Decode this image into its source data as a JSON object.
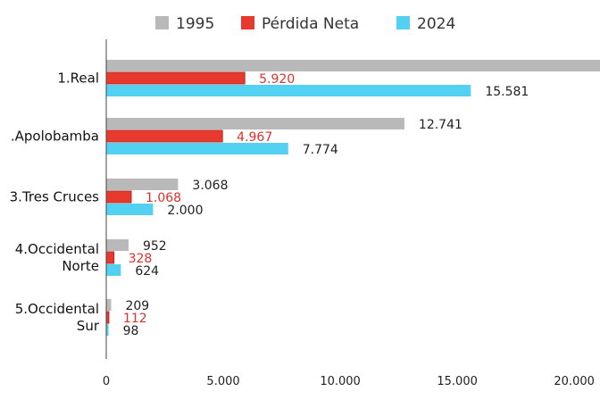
{
  "chart_data": {
    "type": "bar",
    "orientation": "horizontal",
    "title": "",
    "xlabel": "",
    "ylabel": "",
    "categories": [
      [
        "1.Real"
      ],
      [
        ".Apolobamba"
      ],
      [
        "3.Tres Cruces"
      ],
      [
        "4.Occidental",
        "Norte"
      ],
      [
        "5.Occidental",
        "Sur"
      ]
    ],
    "series": [
      {
        "name": "1995",
        "color": "#b9b9b9",
        "values": [
          21900,
          12741,
          3068,
          952,
          209
        ],
        "labels": [
          "",
          "12.741",
          "3.068",
          "952",
          "209"
        ],
        "label_color": "#222222"
      },
      {
        "name": "Pérdida Neta",
        "color": "#e8392e",
        "values": [
          5920,
          4967,
          1068,
          328,
          112
        ],
        "labels": [
          "5.920",
          "4.967",
          "1.068",
          "328",
          "112"
        ],
        "label_color": "#e0302a"
      },
      {
        "name": "2024",
        "color": "#52d1f2",
        "values": [
          15581,
          7774,
          2000,
          624,
          98
        ],
        "labels": [
          "15.581",
          "7.774",
          "2.000",
          "624",
          "98"
        ],
        "label_color": "#222222"
      }
    ],
    "xlim": [
      0,
      21100
    ],
    "x_ticks": [
      0,
      5000,
      10000,
      15000,
      20000
    ],
    "x_tick_labels": [
      "0",
      "5.000",
      "10.000",
      "15.000",
      "20.000"
    ],
    "grid": false,
    "legend_position": "top"
  }
}
